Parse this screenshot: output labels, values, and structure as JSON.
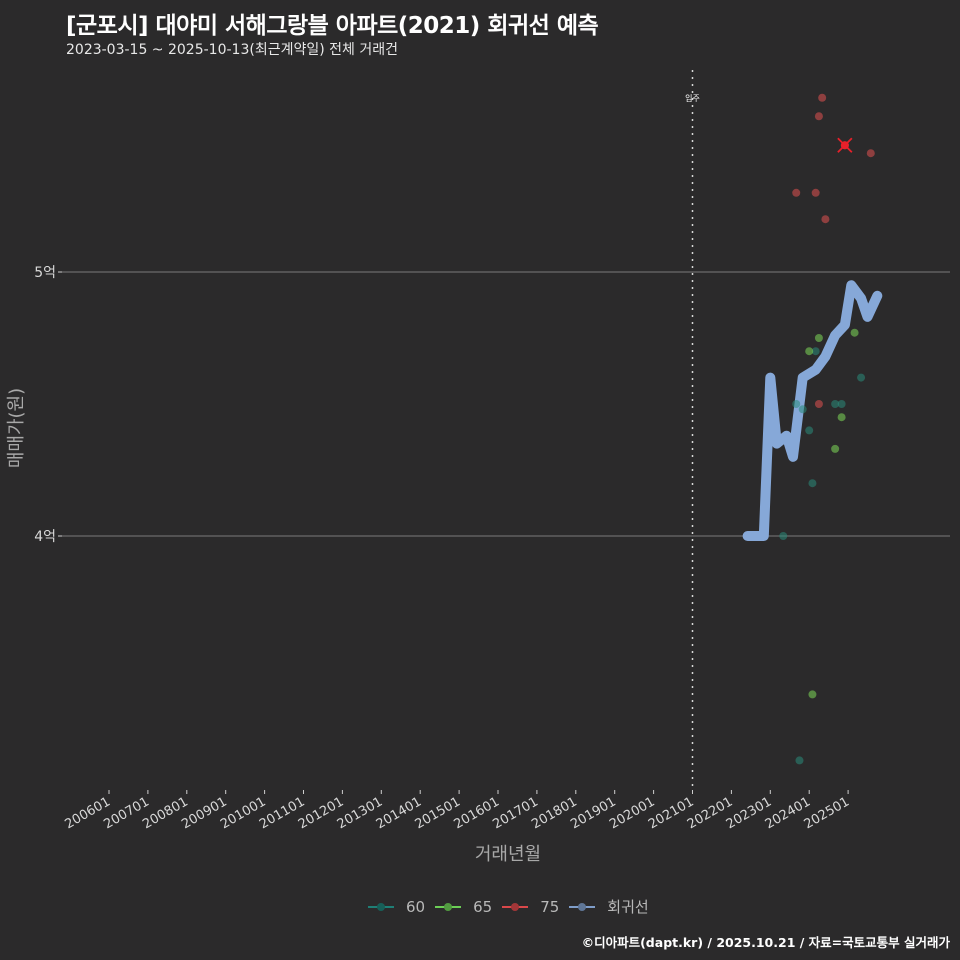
{
  "header": {
    "title": "[군포시] 대야미 서해그랑블 아파트(2021) 회귀선 예측",
    "subtitle": "2023-03-15 ~ 2025-10-13(최근계약일) 전체 거래건"
  },
  "footer": {
    "credit": "©디아파트(dapt.kr) / 2025.10.21 / 자료=국토교통부 실거래가"
  },
  "colors": {
    "background": "#2b2a2b",
    "grid": "#6b6b6b",
    "series_60": "#2a8a7a",
    "series_65": "#7ed957",
    "series_75": "#e05050",
    "regression": "#86a8d8",
    "highlight": "#e8202a"
  },
  "legend": {
    "items": [
      {
        "label": "60",
        "color": "#1f7f76"
      },
      {
        "label": "65",
        "color": "#6ccf56"
      },
      {
        "label": "75",
        "color": "#d9484a"
      },
      {
        "label": "회귀선",
        "color": "#7f9dc9"
      }
    ]
  },
  "chart_data": {
    "type": "scatter",
    "title": "[군포시] 대야미 서해그랑블 아파트(2021) 회귀선 예측",
    "subtitle": "2023-03-15 ~ 2025-10-13(최근계약일) 전체 거래건",
    "xlabel": "거래년월",
    "ylabel": "매매가(원)",
    "x_ticks": [
      "200601",
      "200701",
      "200801",
      "200901",
      "201001",
      "201101",
      "201201",
      "201301",
      "201401",
      "201501",
      "201601",
      "201701",
      "201801",
      "201901",
      "202001",
      "202101",
      "202201",
      "202301",
      "202401",
      "202501"
    ],
    "y_ticks": [
      {
        "label": "4억",
        "value": 400000000
      },
      {
        "label": "5억",
        "value": 500000000
      }
    ],
    "ylim": [
      315000000,
      575000000
    ],
    "annotation": {
      "label": "입주",
      "x": "202101",
      "style": "dotted vertical line"
    },
    "grid": "horizontal major only",
    "legend_position": "bottom",
    "series": [
      {
        "name": "60",
        "points": [
          {
            "x": "2023.05",
            "y": 400000000
          },
          {
            "x": "2023.09",
            "y": 450000000
          },
          {
            "x": "2023.10",
            "y": 315000000
          },
          {
            "x": "2023.11",
            "y": 448000000
          },
          {
            "x": "2024.01",
            "y": 440000000
          },
          {
            "x": "2024.02",
            "y": 420000000
          },
          {
            "x": "2024.03",
            "y": 470000000
          },
          {
            "x": "2024.09",
            "y": 450000000
          },
          {
            "x": "2024.11",
            "y": 450000000
          },
          {
            "x": "2025.05",
            "y": 460000000
          }
        ]
      },
      {
        "name": "65",
        "points": [
          {
            "x": "2024.01",
            "y": 470000000
          },
          {
            "x": "2024.02",
            "y": 340000000
          },
          {
            "x": "2024.04",
            "y": 475000000
          },
          {
            "x": "2024.09",
            "y": 433000000
          },
          {
            "x": "2024.11",
            "y": 445000000
          },
          {
            "x": "2025.03",
            "y": 477000000
          }
        ]
      },
      {
        "name": "75",
        "points": [
          {
            "x": "2023.09",
            "y": 530000000
          },
          {
            "x": "2024.03",
            "y": 530000000
          },
          {
            "x": "2024.04",
            "y": 559000000
          },
          {
            "x": "2024.04",
            "y": 450000000
          },
          {
            "x": "2024.05",
            "y": 566000000
          },
          {
            "x": "2024.06",
            "y": 520000000
          },
          {
            "x": "2024.12",
            "y": 548000000,
            "highlight": true
          },
          {
            "x": "2025.08",
            "y": 545000000
          }
        ]
      },
      {
        "name": "회귀선",
        "type": "line",
        "points": [
          {
            "x": "2022.06",
            "y": 400000000
          },
          {
            "x": "2022.11",
            "y": 400000000
          },
          {
            "x": "2023.01",
            "y": 460000000
          },
          {
            "x": "2023.03",
            "y": 435000000
          },
          {
            "x": "2023.06",
            "y": 438000000
          },
          {
            "x": "2023.08",
            "y": 430000000
          },
          {
            "x": "2023.11",
            "y": 460000000
          },
          {
            "x": "2024.03",
            "y": 463000000
          },
          {
            "x": "2024.06",
            "y": 468000000
          },
          {
            "x": "2024.09",
            "y": 476000000
          },
          {
            "x": "2024.12",
            "y": 480000000
          },
          {
            "x": "2025.02",
            "y": 495000000
          },
          {
            "x": "2025.05",
            "y": 490000000
          },
          {
            "x": "2025.07",
            "y": 483000000
          },
          {
            "x": "2025.10",
            "y": 491000000
          }
        ]
      }
    ]
  },
  "axes": {
    "xlabel": "거래년월",
    "ylabel": "매매가(원)",
    "annotation_label": "입주"
  }
}
